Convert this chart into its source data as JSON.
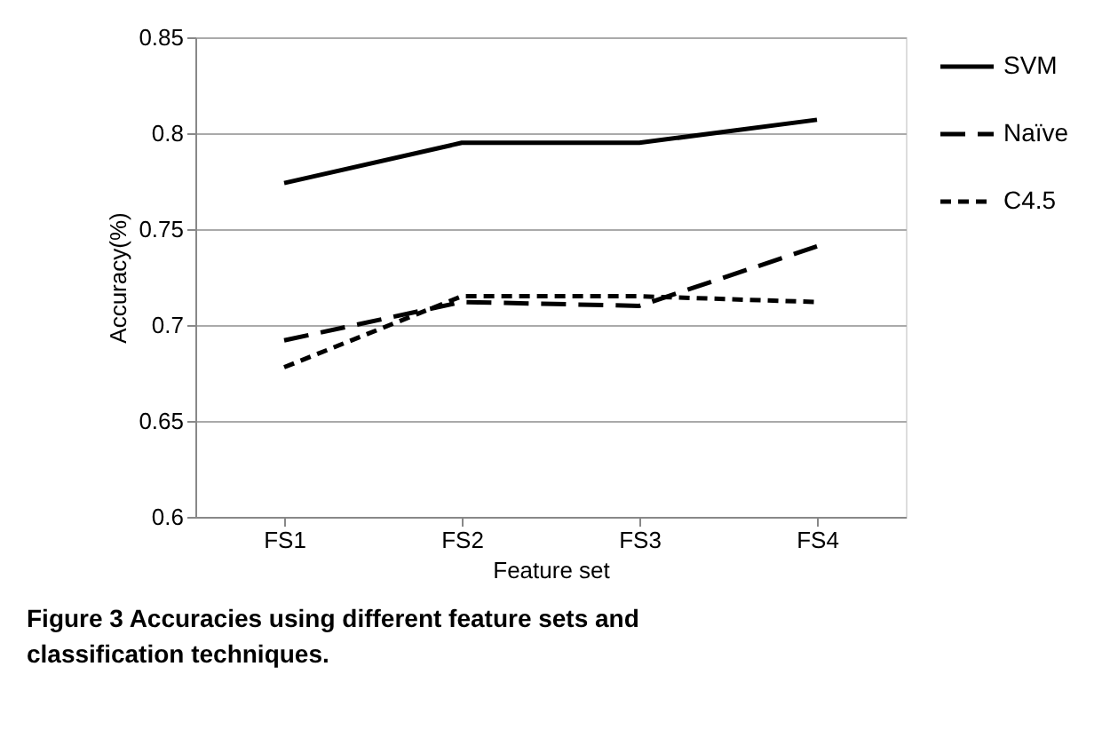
{
  "chart_data": {
    "type": "line",
    "xlabel": "Feature set",
    "ylabel": "Accuracy(%)",
    "categories": [
      "FS1",
      "FS2",
      "FS3",
      "FS4"
    ],
    "series": [
      {
        "name": "SVM",
        "color": "#000000",
        "line_style": "solid",
        "values": [
          0.774,
          0.795,
          0.795,
          0.807
        ]
      },
      {
        "name": "Naïve",
        "color": "#000000",
        "line_style": "dashed",
        "values": [
          0.692,
          0.712,
          0.71,
          0.741
        ]
      },
      {
        "name": "C4.5",
        "color": "#000000",
        "line_style": "dotted",
        "values": [
          0.678,
          0.715,
          0.715,
          0.712
        ]
      }
    ],
    "ylim": [
      0.6,
      0.85
    ],
    "yticks": [
      0.6,
      0.65,
      0.7,
      0.75,
      0.8,
      0.85
    ],
    "grid": "y",
    "legend": "right",
    "marker": "none",
    "annotations": [
      "Figure 3 Accuracies using different feature sets and classification techniques."
    ]
  }
}
